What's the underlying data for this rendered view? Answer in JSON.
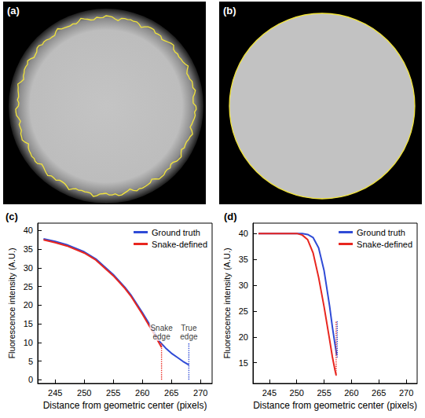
{
  "images": [
    {
      "label": "(a)"
    },
    {
      "label": "(b)"
    }
  ],
  "chart_data": [
    {
      "type": "line",
      "panel_label": "(c)",
      "x_label": "Distance from geometric center (pixels)",
      "y_label": "Fluorescence intensity (A.U.)",
      "xlim": [
        242,
        272
      ],
      "xticks": [
        245,
        250,
        255,
        260,
        265,
        270
      ],
      "ylim": [
        -1,
        42
      ],
      "yticks": [
        0,
        5,
        10,
        15,
        20,
        25,
        30,
        35,
        40
      ],
      "grid": false,
      "legend": "upper right",
      "series": [
        {
          "name": "Ground truth",
          "color": "#2f4bd6",
          "x": [
            243,
            245,
            247,
            250,
            252,
            255,
            257,
            258,
            260,
            262,
            263,
            264,
            265,
            266,
            267,
            268
          ],
          "values": [
            37.8,
            37.1,
            36.2,
            34.3,
            32.4,
            28.2,
            24.8,
            22.8,
            18.0,
            12.9,
            10.2,
            8.5,
            7.1,
            6.0,
            4.9,
            4.0
          ]
        },
        {
          "name": "Snake-defined",
          "color": "#e8261f",
          "x": [
            243,
            245,
            247,
            250,
            252,
            255,
            257,
            258,
            260,
            262,
            263.3
          ],
          "values": [
            37.5,
            36.8,
            35.9,
            34.0,
            32.1,
            27.9,
            24.5,
            22.5,
            17.6,
            12.3,
            8.7
          ]
        }
      ],
      "annotations": [
        {
          "label": "Snake edge",
          "x": 263.3,
          "y_range": [
            0,
            10
          ],
          "color": "#e8261f",
          "line_style": "dotted"
        },
        {
          "label": "True edge",
          "x": 268,
          "y_range": [
            0,
            10
          ],
          "color": "#2f4bd6",
          "line_style": "dotted"
        }
      ]
    },
    {
      "type": "line",
      "panel_label": "(d)",
      "x_label": "Distance from geometric center (pixels)",
      "y_label": "Fluorescence intensity (A.U.)",
      "xlim": [
        242,
        272
      ],
      "xticks": [
        245,
        250,
        255,
        260,
        265,
        270
      ],
      "ylim": [
        11,
        42
      ],
      "yticks": [
        15,
        20,
        25,
        30,
        35,
        40
      ],
      "grid": false,
      "legend": "upper right",
      "series": [
        {
          "name": "Ground truth",
          "color": "#2f4bd6",
          "x": [
            243,
            245,
            248,
            250,
            251,
            252,
            253,
            254,
            255,
            256,
            256.5,
            257,
            257.3
          ],
          "values": [
            40,
            40,
            40,
            40,
            40,
            39.8,
            39.2,
            37.2,
            32.8,
            26.0,
            22.0,
            18.5,
            16.5
          ]
        },
        {
          "name": "Snake-defined",
          "color": "#e8261f",
          "x": [
            243,
            245,
            248,
            250,
            251,
            252,
            253,
            254,
            255,
            256,
            256.5,
            257,
            257.2
          ],
          "values": [
            40,
            40,
            40,
            40,
            39.7,
            38.8,
            36.2,
            31.5,
            25.8,
            19.5,
            16.2,
            13.5,
            12.6
          ]
        }
      ],
      "annotations": [
        {
          "x": 257.2,
          "y_range": [
            12.5,
            23
          ],
          "color": "#e8261f",
          "line_style": "dotted"
        },
        {
          "x": 257.4,
          "y_range": [
            16,
            23
          ],
          "color": "#2f4bd6",
          "line_style": "dotted"
        }
      ]
    }
  ]
}
